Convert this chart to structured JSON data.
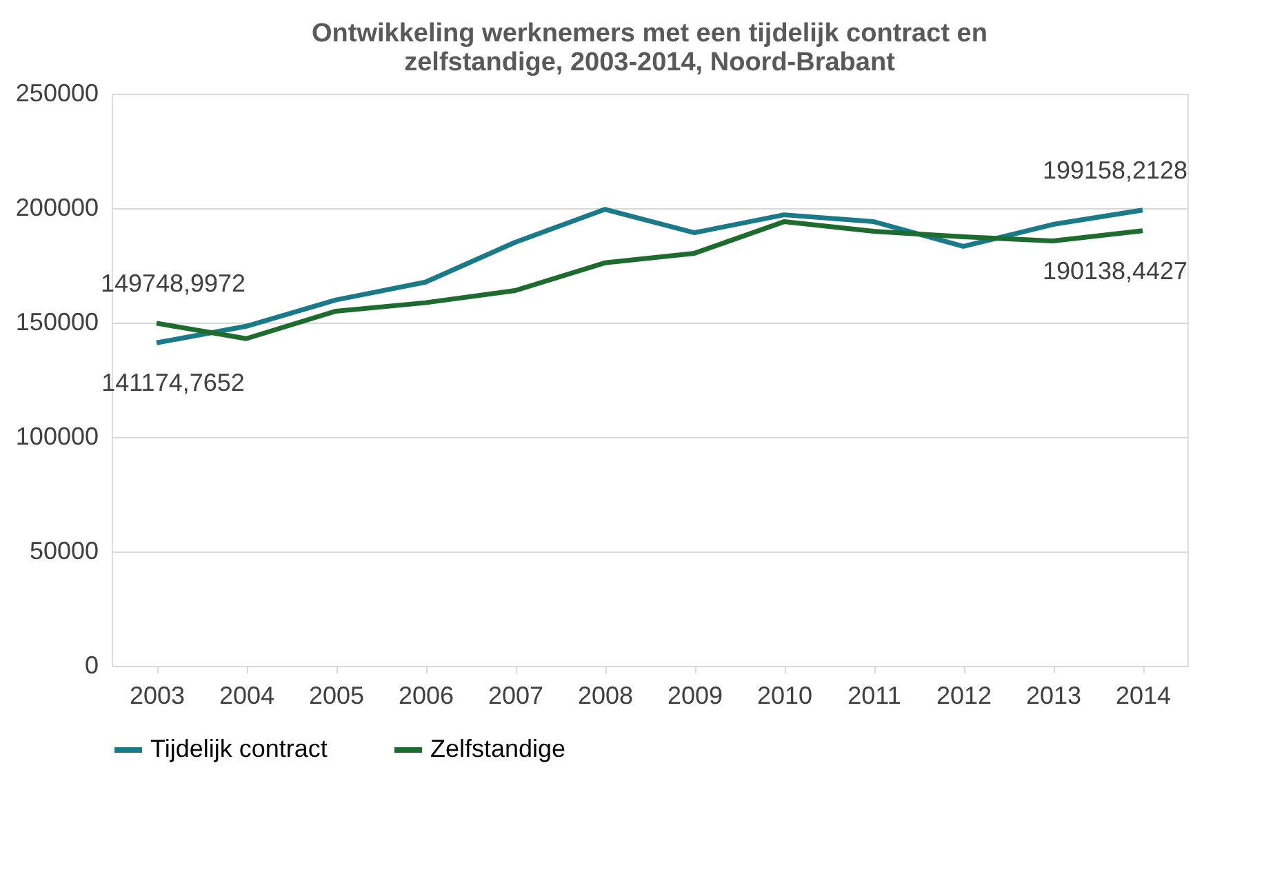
{
  "chart_data": {
    "type": "line",
    "title": "Ontwikkeling werknemers met een tijdelijk contract en\nzelfstandige, 2003-2014, Noord-Brabant",
    "categories": [
      "2003",
      "2004",
      "2005",
      "2006",
      "2007",
      "2008",
      "2009",
      "2010",
      "2011",
      "2012",
      "2013",
      "2014"
    ],
    "series": [
      {
        "name": "Tijdelijk contract",
        "color": "#1b7a87",
        "values": [
          141174.7652,
          148400,
          159900,
          167700,
          185100,
          199500,
          189300,
          197100,
          194100,
          183300,
          192900,
          199158.2128
        ]
      },
      {
        "name": "Zelfstandige",
        "color": "#1e6b30",
        "values": [
          149748.9972,
          143000,
          155000,
          158700,
          164000,
          176100,
          180300,
          194100,
          189900,
          187500,
          185700,
          190138.4427
        ]
      }
    ],
    "ylim": [
      0,
      250000
    ],
    "yticks": [
      0,
      50000,
      100000,
      150000,
      200000,
      250000
    ],
    "grid": "y",
    "legend": "bottom",
    "marker": "none",
    "line_style": "solid",
    "annotations": [
      {
        "text": "149748,9972",
        "x": "2003",
        "y": 149748.9972
      },
      {
        "text": "141174,7652",
        "x": "2003",
        "y": 141174.7652
      },
      {
        "text": "199158,2128",
        "x": "2014",
        "y": 199158.2128
      },
      {
        "text": "190138,4427",
        "x": "2014",
        "y": 190138.4427
      }
    ]
  }
}
